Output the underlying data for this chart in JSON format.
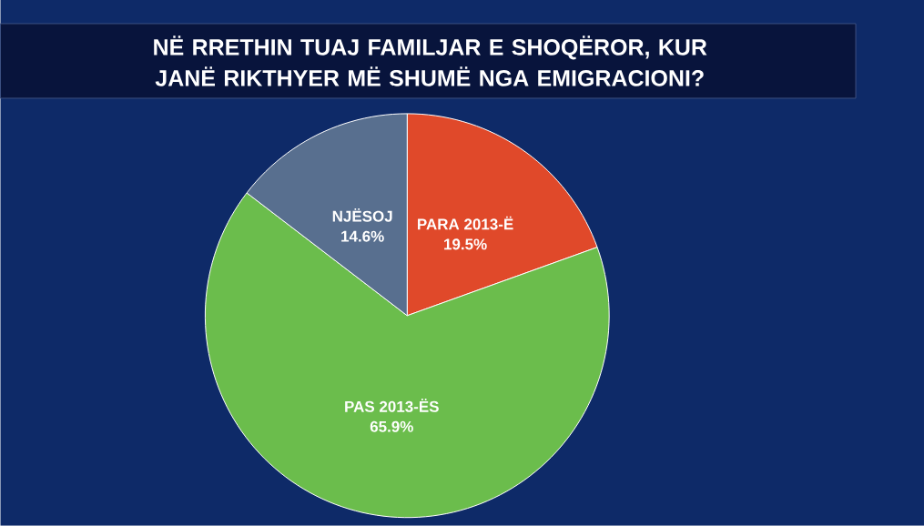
{
  "chart_data": {
    "type": "pie",
    "title": "NË RRETHIN TUAJ FAMILJAR E SHOQËROR, KUR JANË RIKTHYER MË SHUMË NGA EMIGRACIONI?",
    "categories": [
      "PARA 2013-Ë",
      "PAS 2013-ËS",
      "NJËSOJ"
    ],
    "values": [
      19.5,
      65.9,
      14.6
    ],
    "value_labels": [
      "19.5%",
      "65.9%",
      "14.6%"
    ],
    "colors": [
      "#e0492a",
      "#6bbd4c",
      "#586f8f"
    ]
  }
}
